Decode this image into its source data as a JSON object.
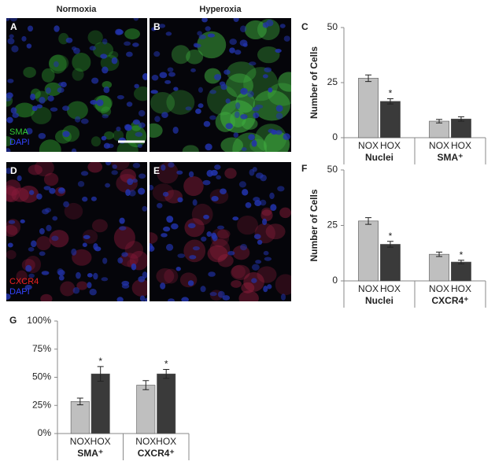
{
  "figure": {
    "columns": [
      "Normoxia",
      "Hyperoxia"
    ],
    "panels": [
      {
        "label": "A",
        "stains": [
          {
            "text": "SMA",
            "color": "#33cc33"
          },
          {
            "text": "DAPI",
            "color": "#3344ff"
          }
        ]
      },
      {
        "label": "B"
      },
      {
        "label": "D",
        "stains": [
          {
            "text": "CXCR4",
            "color": "#ee2222"
          },
          {
            "text": "DAPI",
            "color": "#3344ff"
          }
        ]
      },
      {
        "label": "E"
      }
    ]
  },
  "chart_data": [
    {
      "type": "bar",
      "panel_label": "C",
      "y_label": "Number of Cells",
      "categories": [
        "Nuclei",
        "SMA⁺"
      ],
      "series": [
        {
          "name": "NOX",
          "color": "#bfbfbf",
          "values": [
            27,
            7.5
          ],
          "errors": [
            1.5,
            0.8
          ]
        },
        {
          "name": "HOX",
          "color": "#3a3a3a",
          "values": [
            16.5,
            8.5
          ],
          "errors": [
            1.2,
            1.0
          ]
        }
      ],
      "ylim": [
        0,
        50
      ],
      "yticks": [
        0,
        25,
        50
      ],
      "annotations": [
        {
          "text": "*",
          "series": 1,
          "category": 0
        }
      ]
    },
    {
      "type": "bar",
      "panel_label": "F",
      "y_label": "Number of Cells",
      "categories": [
        "Nuclei",
        "CXCR4⁺"
      ],
      "series": [
        {
          "name": "NOX",
          "color": "#bfbfbf",
          "values": [
            27,
            12
          ],
          "errors": [
            1.5,
            1.0
          ]
        },
        {
          "name": "HOX",
          "color": "#3a3a3a",
          "values": [
            16.5,
            8.5
          ],
          "errors": [
            1.3,
            0.8
          ]
        }
      ],
      "ylim": [
        0,
        50
      ],
      "yticks": [
        0,
        25,
        50
      ],
      "annotations": [
        {
          "text": "*",
          "series": 1,
          "category": 0
        },
        {
          "text": "*",
          "series": 1,
          "category": 1
        }
      ]
    },
    {
      "type": "bar",
      "panel_label": "G",
      "categories": [
        "SMA⁺",
        "CXCR4⁺"
      ],
      "series": [
        {
          "name": "NOX",
          "color": "#bfbfbf",
          "values": [
            28.5,
            43
          ],
          "errors": [
            3,
            4
          ]
        },
        {
          "name": "HOX",
          "color": "#3a3a3a",
          "values": [
            53,
            53
          ],
          "errors": [
            6.5,
            4
          ]
        }
      ],
      "ylim": [
        0,
        100
      ],
      "yticks": [
        {
          "value": 0,
          "label": "0%"
        },
        {
          "value": 25,
          "label": "25%"
        },
        {
          "value": 50,
          "label": "50%"
        },
        {
          "value": 75,
          "label": "75%"
        },
        {
          "value": 100,
          "label": "100%"
        }
      ],
      "annotations": [
        {
          "text": "*",
          "series": 1,
          "category": 0
        },
        {
          "text": "*",
          "series": 1,
          "category": 1
        }
      ]
    }
  ]
}
